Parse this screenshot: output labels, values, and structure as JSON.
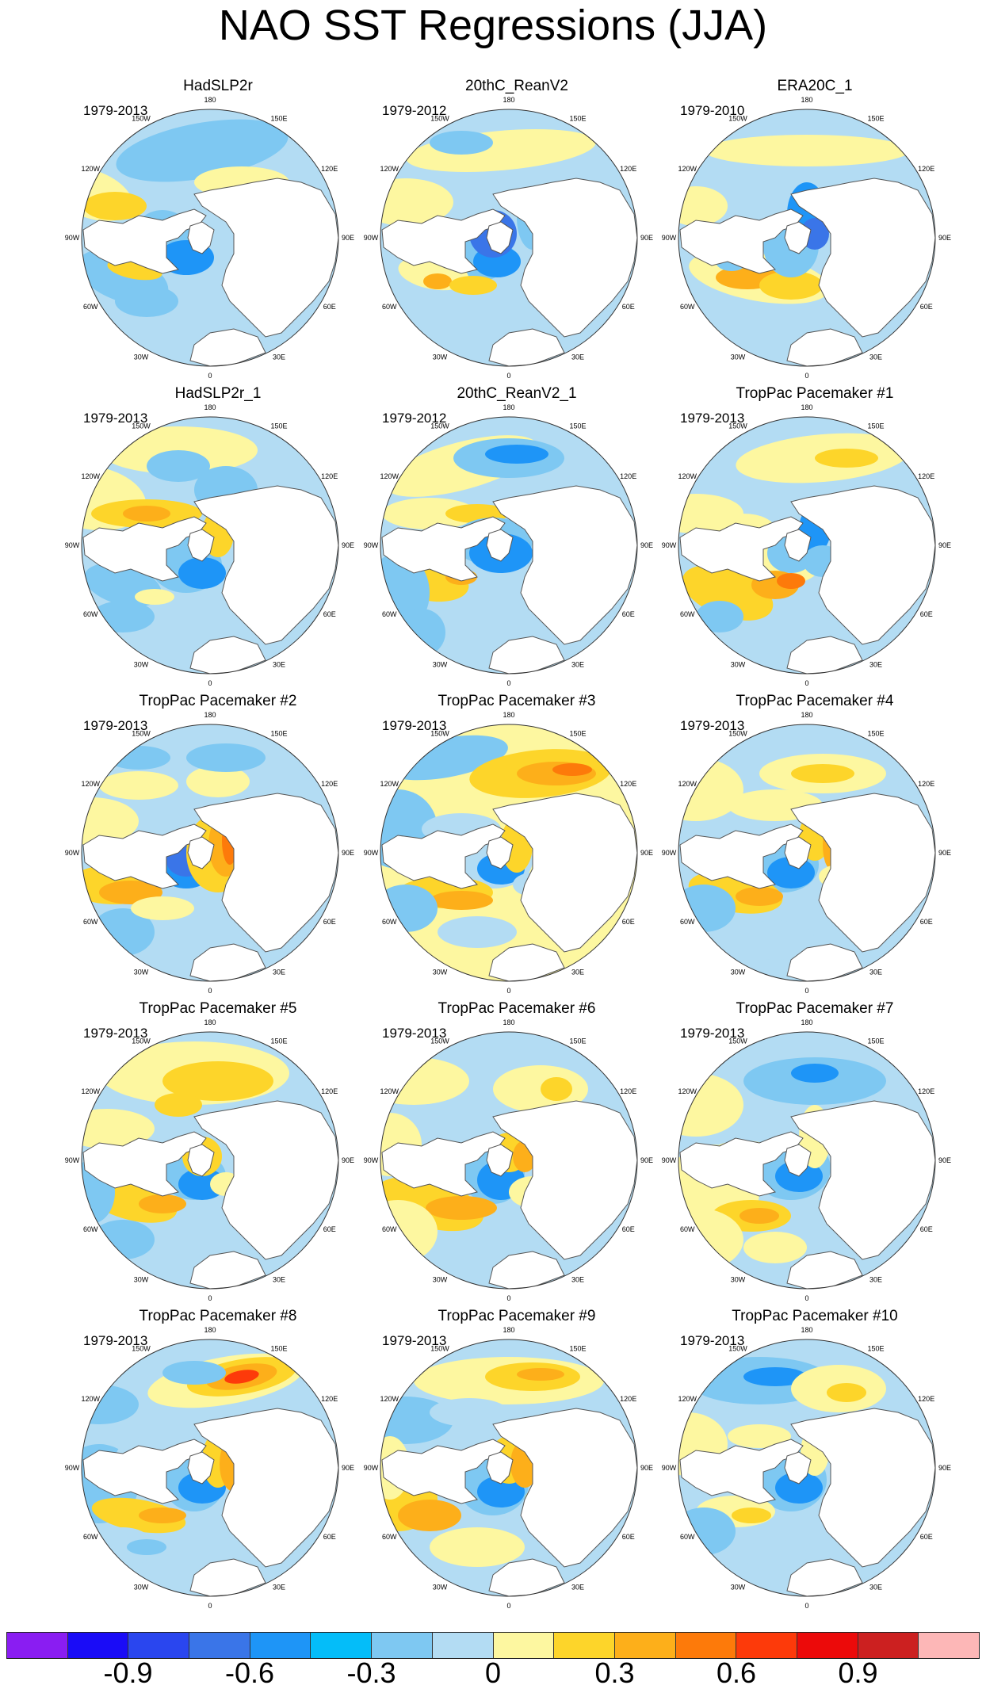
{
  "title": "NAO SST Regressions (JJA)",
  "panels": [
    {
      "title": "HadSLP2r",
      "years": "1979-2013",
      "pattern": "b1"
    },
    {
      "title": "20thC_ReanV2",
      "years": "1979-2012",
      "pattern": "b2"
    },
    {
      "title": "ERA20C_1",
      "years": "1979-2010",
      "pattern": "b3"
    },
    {
      "title": "HadSLP2r_1",
      "years": "1979-2013",
      "pattern": "b4"
    },
    {
      "title": "20thC_ReanV2_1",
      "years": "1979-2012",
      "pattern": "b5"
    },
    {
      "title": "TropPac Pacemaker #1",
      "years": "1979-2013",
      "pattern": "w1"
    },
    {
      "title": "TropPac Pacemaker #2",
      "years": "1979-2013",
      "pattern": "w2"
    },
    {
      "title": "TropPac Pacemaker #3",
      "years": "1979-2013",
      "pattern": "w3"
    },
    {
      "title": "TropPac Pacemaker #4",
      "years": "1979-2013",
      "pattern": "w4"
    },
    {
      "title": "TropPac Pacemaker #5",
      "years": "1979-2013",
      "pattern": "w5"
    },
    {
      "title": "TropPac Pacemaker #6",
      "years": "1979-2013",
      "pattern": "w6"
    },
    {
      "title": "TropPac Pacemaker #7",
      "years": "1979-2013",
      "pattern": "w7"
    },
    {
      "title": "TropPac Pacemaker #8",
      "years": "1979-2013",
      "pattern": "w8"
    },
    {
      "title": "TropPac Pacemaker #9",
      "years": "1979-2013",
      "pattern": "w9"
    },
    {
      "title": "TropPac Pacemaker #10",
      "years": "1979-2013",
      "pattern": "w10"
    }
  ],
  "longitude_labels": [
    "180",
    "150E",
    "120E",
    "90E",
    "60E",
    "30E",
    "0",
    "30W",
    "60W",
    "90W",
    "120W",
    "150W"
  ],
  "colorbar": {
    "colors": [
      "#8a1df2",
      "#1a0cf7",
      "#2a46ef",
      "#3a75e8",
      "#1e95f7",
      "#04bdf9",
      "#7ec8f2",
      "#b3dcf3",
      "#fdf7a0",
      "#fdd52a",
      "#fdaf1a",
      "#fd7a0a",
      "#fd3a0a",
      "#ec0a0a",
      "#cc2020",
      "#fdb7b7"
    ],
    "tick_labels": [
      "-0.9",
      "-0.6",
      "-0.3",
      "0",
      "0.3",
      "0.6",
      "0.9"
    ]
  },
  "colors": {
    "land": "#ffffff",
    "coast": "#555555",
    "frame": "#333333"
  }
}
